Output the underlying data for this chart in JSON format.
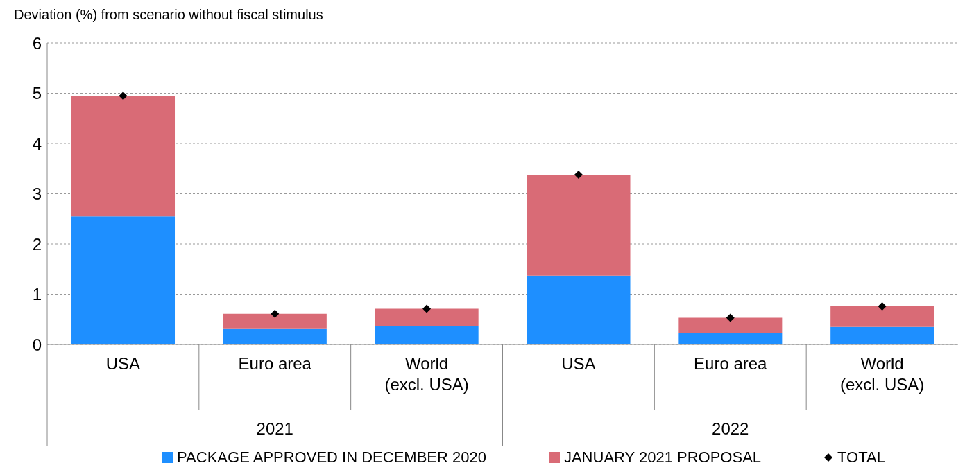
{
  "chart_data": {
    "type": "bar",
    "stacked": true,
    "ylabel": "Deviation (%) from scenario without fiscal stimulus",
    "categories": [
      "USA",
      "Euro area",
      "World\n(excl. USA)",
      "USA",
      "Euro area",
      "World\n(excl. USA)"
    ],
    "annotations": [
      "2021",
      "2022"
    ],
    "series": [
      {
        "name": "PACKAGE APPROVED IN DECEMBER 2020",
        "color": "#1e8fff",
        "values": [
          2.55,
          0.32,
          0.37,
          1.37,
          0.22,
          0.35
        ]
      },
      {
        "name": "JANUARY 2021 PROPOSAL",
        "color": "#d96b76",
        "values": [
          2.4,
          0.29,
          0.34,
          2.01,
          0.31,
          0.41
        ]
      },
      {
        "name": "TOTAL",
        "type": "scatter",
        "marker": "diamond",
        "color": "#000000",
        "values": [
          4.95,
          0.61,
          0.71,
          3.38,
          0.53,
          0.76
        ]
      }
    ],
    "ylim": [
      0,
      6
    ],
    "yticks": [
      0,
      1,
      2,
      3,
      4,
      5,
      6
    ],
    "grid": "y",
    "legend": "bottom"
  }
}
